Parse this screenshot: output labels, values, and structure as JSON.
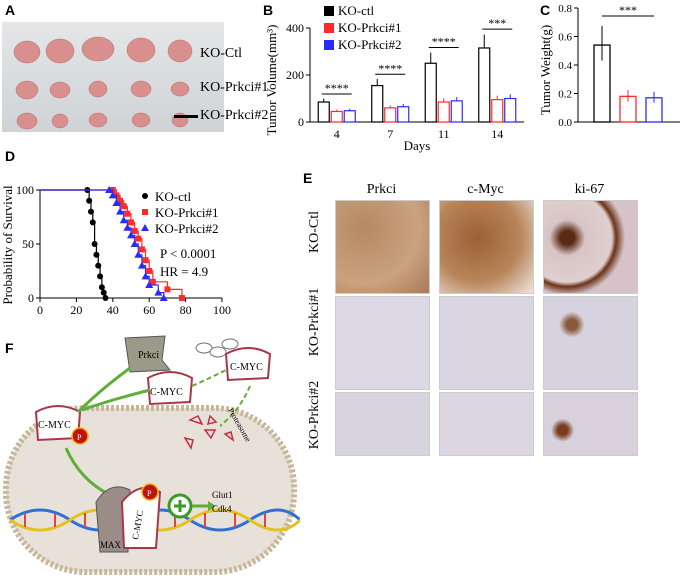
{
  "panels": {
    "A": "A",
    "B": "B",
    "C": "C",
    "D": "D",
    "E": "E",
    "F": "F"
  },
  "panelA": {
    "labels": [
      "KO-Ctl",
      "KO-Prkci#1",
      "KO-Prkci#2"
    ]
  },
  "colors": {
    "ctl": "#000000",
    "p1": "#ff2a2a",
    "p2": "#2a2aff",
    "arrow": "#5fae3c",
    "cmyc": "#a8374a",
    "nucleus": "#e9e3dd"
  },
  "chart_data": [
    {
      "type": "bar",
      "panel": "B",
      "ylabel": "Tumor Volume(mm³)",
      "xlabel": "Days",
      "categories": [
        "4",
        "7",
        "11",
        "14"
      ],
      "ylim": [
        0,
        400
      ],
      "yticks": [
        "0",
        "200",
        "400"
      ],
      "series": [
        {
          "name": "KO-ctl",
          "values": [
            85,
            155,
            250,
            315
          ]
        },
        {
          "name": "KO-Prkci#1",
          "values": [
            45,
            60,
            85,
            95
          ]
        },
        {
          "name": "KO-Prkci#2",
          "values": [
            48,
            65,
            90,
            100
          ]
        }
      ],
      "significance": [
        "****",
        "****",
        "****",
        "***"
      ]
    },
    {
      "type": "bar",
      "panel": "C",
      "ylabel": "Tumor Weight(g)",
      "ylim": [
        0,
        0.8
      ],
      "yticks": [
        "0.0",
        "0.2",
        "0.4",
        "0.6",
        "0.8"
      ],
      "series": [
        {
          "name": "KO-ctl",
          "values": [
            0.54
          ]
        },
        {
          "name": "KO-Prkci#1",
          "values": [
            0.18
          ]
        },
        {
          "name": "KO-Prkci#2",
          "values": [
            0.17
          ]
        }
      ],
      "significance": [
        "***"
      ]
    },
    {
      "type": "line",
      "panel": "D",
      "ylabel": "Probability of Survival",
      "xlim": [
        0,
        100
      ],
      "ylim": [
        0,
        100
      ],
      "xticks": [
        "0",
        "20",
        "40",
        "60",
        "80",
        "100"
      ],
      "yticks": [
        "0",
        "50",
        "100"
      ],
      "series": [
        {
          "name": "KO-ctl",
          "x": [
            0,
            26,
            27,
            28,
            29,
            30,
            31,
            32,
            33,
            34,
            35,
            36
          ],
          "y": [
            100,
            100,
            90,
            80,
            70,
            50,
            40,
            30,
            20,
            10,
            5,
            0
          ]
        },
        {
          "name": "KO-Prkci#1",
          "x": [
            0,
            40,
            42,
            44,
            46,
            48,
            50,
            52,
            54,
            56,
            58,
            60,
            62,
            70,
            78
          ],
          "y": [
            100,
            100,
            95,
            90,
            85,
            78,
            70,
            62,
            55,
            45,
            35,
            25,
            15,
            8,
            0
          ]
        },
        {
          "name": "KO-Prkci#2",
          "x": [
            0,
            38,
            40,
            42,
            44,
            46,
            48,
            50,
            52,
            54,
            56,
            58,
            60,
            65,
            68
          ],
          "y": [
            100,
            100,
            95,
            88,
            80,
            72,
            65,
            58,
            50,
            40,
            30,
            20,
            12,
            5,
            0
          ]
        }
      ],
      "annotations": [
        "P < 0.0001",
        "HR = 4.9"
      ]
    }
  ],
  "panelE": {
    "cols": [
      "Prkci",
      "c-Myc",
      "ki-67"
    ],
    "rows": [
      "KO-Ctl",
      "KO-Prkci#1",
      "KO-Prkci#2"
    ]
  },
  "panelF": {
    "prkci": "Prkci",
    "cmyc": "C-MYC",
    "cmyc2": "C-MYC",
    "cmyc3": "C-MYC",
    "cmyc4": "C-MYC",
    "max": "MAX",
    "glut1": "Glut1",
    "cdk4": "Cdk4",
    "proteasome": "Proteasome",
    "p1": "P",
    "p2": "P"
  }
}
